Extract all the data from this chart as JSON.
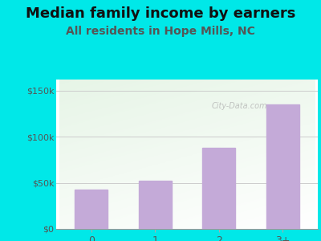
{
  "categories": [
    "0",
    "1",
    "2",
    "3+"
  ],
  "values": [
    43000,
    52000,
    88000,
    135000
  ],
  "bar_color": "#c4aad8",
  "title": "Median family income by earners",
  "subtitle": "All residents in Hope Mills, NC",
  "subtitle_color": "#555555",
  "title_color": "#111111",
  "background_color": "#00e8e8",
  "yticks": [
    0,
    50000,
    100000,
    150000
  ],
  "ytick_labels": [
    "$0",
    "$50k",
    "$100k",
    "$150k"
  ],
  "ylim": [
    0,
    162000
  ],
  "watermark": "City-Data.com",
  "title_fontsize": 13,
  "subtitle_fontsize": 10,
  "ytick_fontsize": 8,
  "xtick_fontsize": 9
}
